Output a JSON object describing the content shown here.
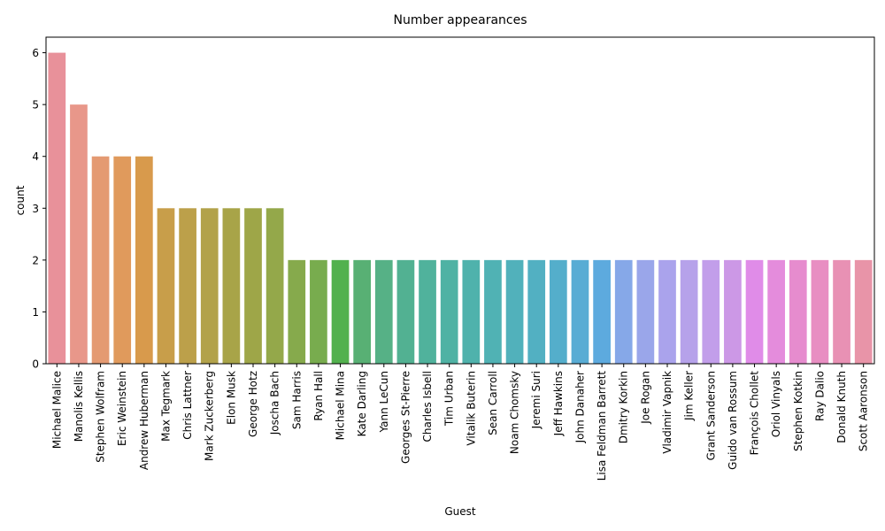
{
  "chart_data": {
    "type": "bar",
    "title": "Number appearances",
    "xlabel": "Guest",
    "ylabel": "count",
    "ylim": [
      0,
      6.3
    ],
    "yticks": [
      0,
      1,
      2,
      3,
      4,
      5,
      6
    ],
    "grid": false,
    "categories": [
      "Michael Malice",
      "Manolis Kellis",
      "Stephen Wolfram",
      "Eric Weinstein",
      "Andrew Huberman",
      "Max Tegmark",
      "Chris Lattner",
      "Mark Zuckerberg",
      "Elon Musk",
      "George Hotz",
      "Joscha Bach",
      "Sam Harris",
      "Ryan Hall",
      "Michael Mina",
      "Kate Darling",
      "Yann LeCun",
      "Georges St-Pierre",
      "Charles Isbell",
      "Tim Urban",
      "Vitalik Buterin",
      "Sean Carroll",
      "Noam Chomsky",
      "Jeremi Suri",
      "Jeff Hawkins",
      "John Danaher",
      "Lisa Feldman Barrett",
      "Dmitry Korkin",
      "Joe Rogan",
      "Vladimir Vapnik",
      "Jim Keller",
      "Grant Sanderson",
      "Guido van Rossum",
      "François Chollet",
      "Oriol Vinyals",
      "Stephen Kotkin",
      "Ray Dalio",
      "Donald Knuth",
      "Scott Aaronson"
    ],
    "values": [
      6,
      5,
      4,
      4,
      4,
      3,
      3,
      3,
      3,
      3,
      3,
      2,
      2,
      2,
      2,
      2,
      2,
      2,
      2,
      2,
      2,
      2,
      2,
      2,
      2,
      2,
      2,
      2,
      2,
      2,
      2,
      2,
      2,
      2,
      2,
      2,
      2,
      2
    ],
    "colors": [
      "#e8919a",
      "#e8978a",
      "#e49a72",
      "#e09a5c",
      "#d89a4c",
      "#c89e4a",
      "#bca04a",
      "#b2a24a",
      "#a8a448",
      "#9ea648",
      "#94a84a",
      "#86aa4c",
      "#78ac4e",
      "#52b14e",
      "#58b074",
      "#56b186",
      "#52b192",
      "#50b29c",
      "#4fb2a4",
      "#4fb2ac",
      "#50b2b4",
      "#51b1bb",
      "#52b0c2",
      "#54aecb",
      "#58acd4",
      "#5daade",
      "#86a8e8",
      "#9aa6ea",
      "#aaa3ec",
      "#b6a2ea",
      "#c29eea",
      "#cc98e6",
      "#e08ce8",
      "#e48cdc",
      "#e68cce",
      "#e88ec2",
      "#e891b4",
      "#e894a8"
    ]
  }
}
